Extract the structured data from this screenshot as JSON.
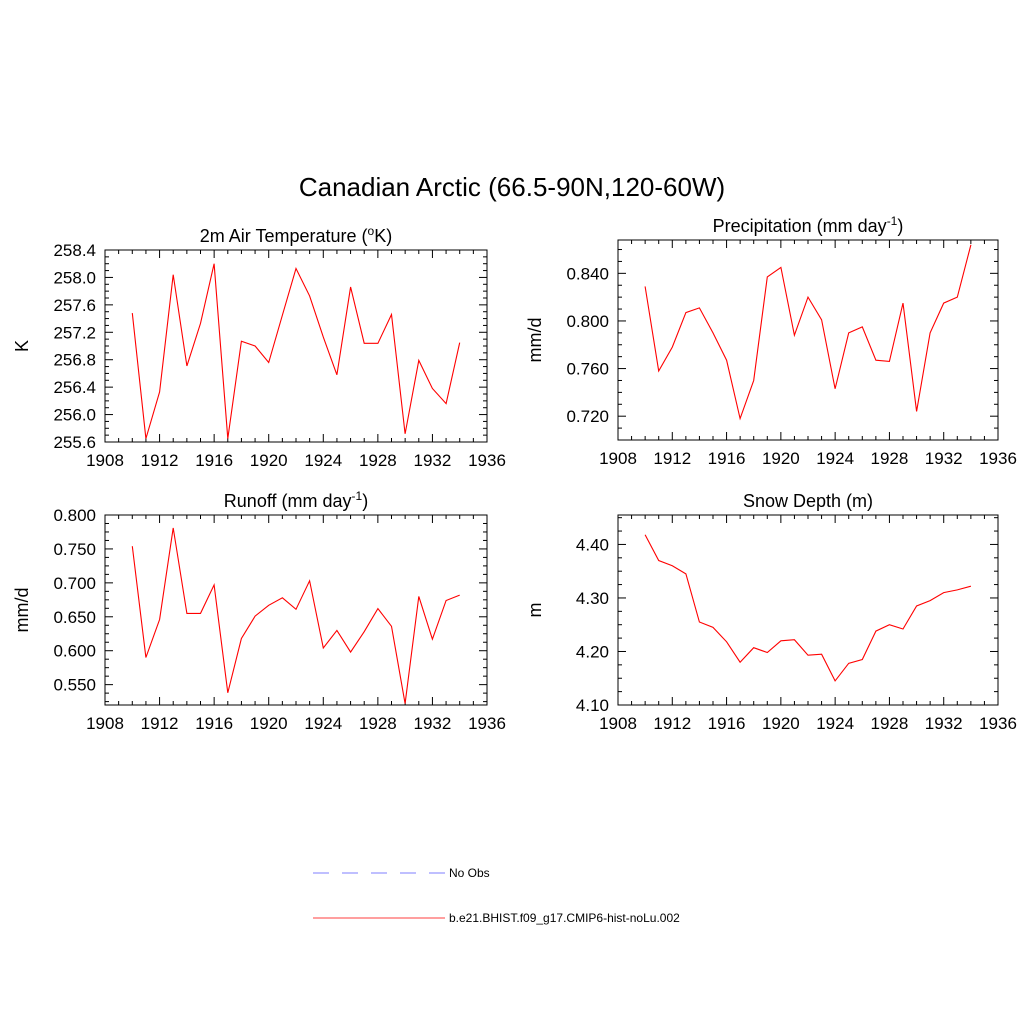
{
  "figure": {
    "title": "Canadian Arctic (66.5-90N,120-60W)"
  },
  "legend": {
    "items": [
      {
        "label": "No Obs",
        "color": "#9999ff",
        "style": "dashed"
      },
      {
        "label": "b.e21.BHIST.f09_g17.CMIP6-hist-noLu.002",
        "color": "#ff6666",
        "style": "solid"
      }
    ]
  },
  "chart_data": [
    {
      "type": "line",
      "title_main": "2m Air Temperature (",
      "title_sup": "o",
      "title_end": "K)",
      "ylabel": "K",
      "xlim": [
        1908,
        1936
      ],
      "ylim": [
        255.6,
        258.4
      ],
      "xticks": [
        1908,
        1912,
        1916,
        1920,
        1924,
        1928,
        1932,
        1936
      ],
      "yticks": [
        255.6,
        256.0,
        256.4,
        256.8,
        257.2,
        257.6,
        258.0,
        258.4
      ],
      "ytick_decimals": 1,
      "series": [
        {
          "color": "#ff0000",
          "x": [
            1910,
            1911,
            1912,
            1913,
            1914,
            1915,
            1916,
            1917,
            1918,
            1919,
            1920,
            1921,
            1922,
            1923,
            1924,
            1925,
            1926,
            1927,
            1928,
            1929,
            1930,
            1931,
            1932,
            1933,
            1934
          ],
          "values": [
            257.48,
            255.65,
            256.33,
            258.04,
            256.71,
            257.33,
            258.2,
            255.65,
            257.07,
            257.0,
            256.76,
            257.45,
            258.13,
            257.73,
            257.13,
            256.58,
            257.86,
            257.04,
            257.04,
            257.46,
            255.72,
            256.79,
            256.38,
            256.16,
            257.05
          ]
        }
      ]
    },
    {
      "type": "line",
      "title_main": "Precipitation (mm day",
      "title_sup": "-1",
      "title_end": ")",
      "ylabel": "mm/d",
      "xlim": [
        1908,
        1936
      ],
      "ylim": [
        0.7,
        0.868
      ],
      "xticks": [
        1908,
        1912,
        1916,
        1920,
        1924,
        1928,
        1932,
        1936
      ],
      "yticks": [
        0.72,
        0.76,
        0.8,
        0.84
      ],
      "ytick_decimals": 3,
      "series": [
        {
          "color": "#ff0000",
          "x": [
            1910,
            1911,
            1912,
            1913,
            1914,
            1915,
            1916,
            1917,
            1918,
            1919,
            1920,
            1921,
            1922,
            1923,
            1924,
            1925,
            1926,
            1927,
            1928,
            1929,
            1930,
            1931,
            1932,
            1933,
            1934
          ],
          "values": [
            0.829,
            0.758,
            0.778,
            0.807,
            0.811,
            0.79,
            0.767,
            0.718,
            0.75,
            0.837,
            0.845,
            0.788,
            0.82,
            0.801,
            0.743,
            0.79,
            0.795,
            0.767,
            0.766,
            0.815,
            0.724,
            0.79,
            0.815,
            0.82,
            0.864
          ]
        }
      ]
    },
    {
      "type": "line",
      "title_main": "Runoff (mm day",
      "title_sup": "-1",
      "title_end": ")",
      "ylabel": "mm/d",
      "xlim": [
        1908,
        1936
      ],
      "ylim": [
        0.52,
        0.8
      ],
      "xticks": [
        1908,
        1912,
        1916,
        1920,
        1924,
        1928,
        1932,
        1936
      ],
      "yticks": [
        0.55,
        0.6,
        0.65,
        0.7,
        0.75,
        0.8
      ],
      "ytick_decimals": 3,
      "series": [
        {
          "color": "#ff0000",
          "x": [
            1910,
            1911,
            1912,
            1913,
            1914,
            1915,
            1916,
            1917,
            1918,
            1919,
            1920,
            1921,
            1922,
            1923,
            1924,
            1925,
            1926,
            1927,
            1928,
            1929,
            1930,
            1931,
            1932,
            1933,
            1934
          ],
          "values": [
            0.754,
            0.59,
            0.646,
            0.781,
            0.655,
            0.655,
            0.697,
            0.538,
            0.618,
            0.651,
            0.667,
            0.678,
            0.661,
            0.703,
            0.604,
            0.63,
            0.598,
            0.628,
            0.662,
            0.636,
            0.522,
            0.68,
            0.617,
            0.674,
            0.682
          ]
        }
      ]
    },
    {
      "type": "line",
      "title_main": "Snow Depth (m)",
      "title_sup": "",
      "title_end": "",
      "ylabel": "m",
      "xlim": [
        1908,
        1936
      ],
      "ylim": [
        4.1,
        4.455
      ],
      "xticks": [
        1908,
        1912,
        1916,
        1920,
        1924,
        1928,
        1932,
        1936
      ],
      "yticks": [
        4.1,
        4.2,
        4.3,
        4.4
      ],
      "ytick_decimals": 2,
      "series": [
        {
          "color": "#ff0000",
          "x": [
            1910,
            1911,
            1912,
            1913,
            1914,
            1915,
            1916,
            1917,
            1918,
            1919,
            1920,
            1921,
            1922,
            1923,
            1924,
            1925,
            1926,
            1927,
            1928,
            1929,
            1930,
            1931,
            1932,
            1933,
            1934
          ],
          "values": [
            4.418,
            4.37,
            4.36,
            4.345,
            4.255,
            4.245,
            4.218,
            4.18,
            4.207,
            4.198,
            4.22,
            4.222,
            4.193,
            4.195,
            4.145,
            4.178,
            4.185,
            4.238,
            4.25,
            4.242,
            4.285,
            4.295,
            4.31,
            4.315,
            4.322
          ]
        }
      ]
    }
  ]
}
